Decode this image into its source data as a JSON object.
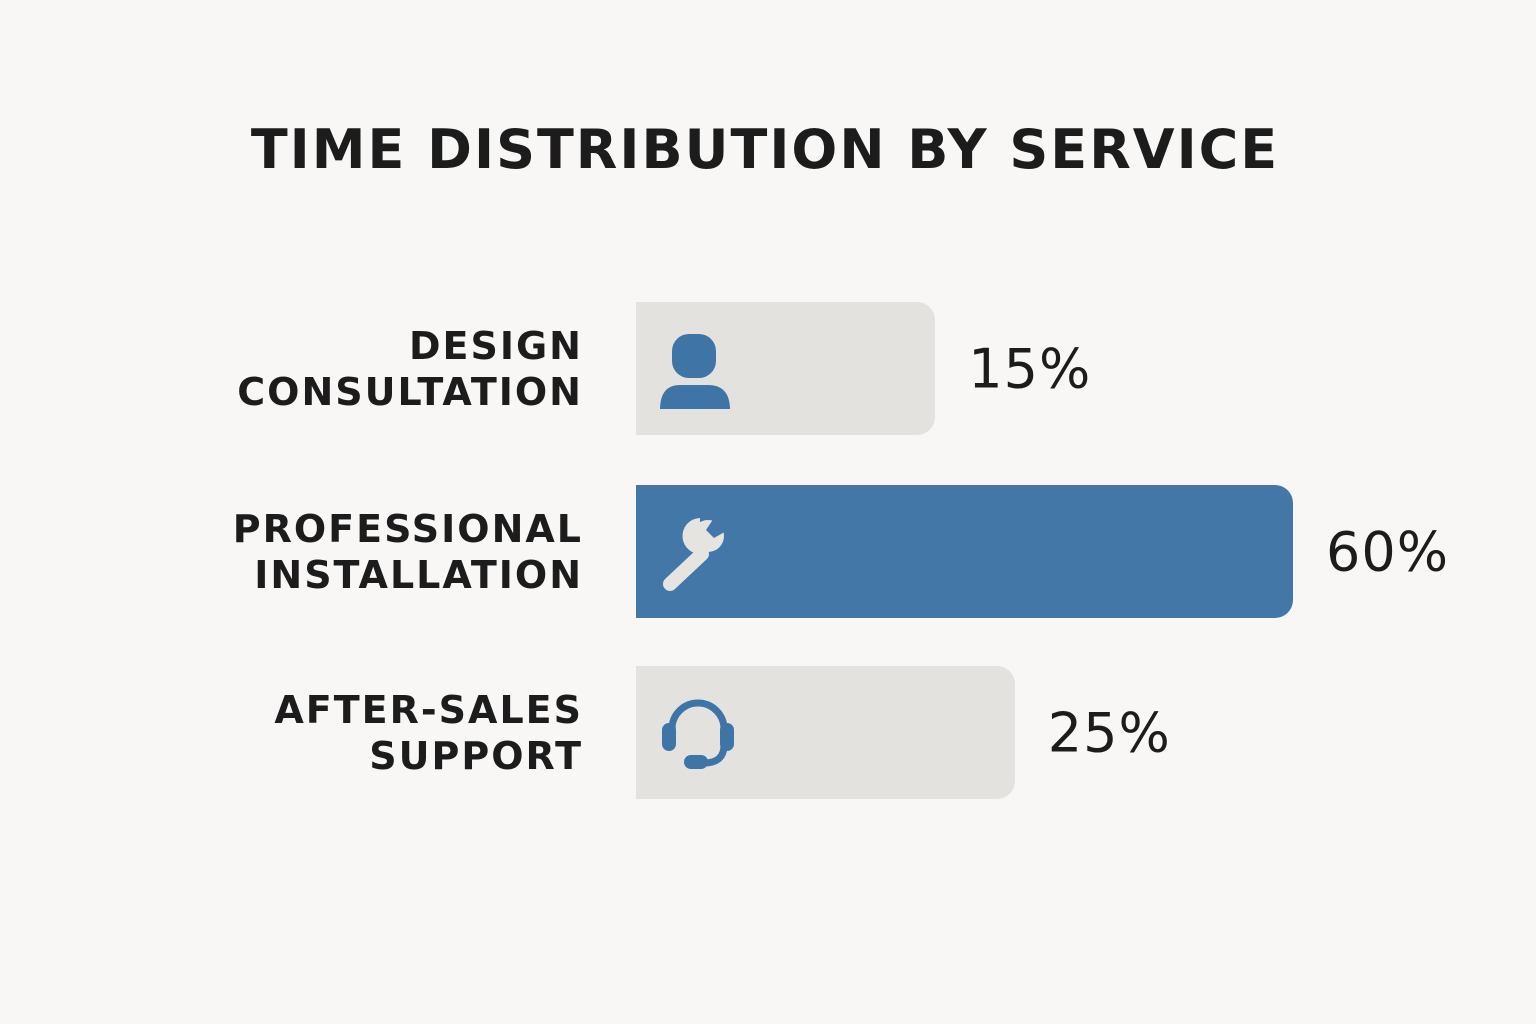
{
  "chart_data": {
    "type": "bar",
    "orientation": "horizontal",
    "title": "TIME DISTRIBUTION BY SERVICE",
    "categories": [
      {
        "line1": "DESIGN",
        "line2": "CONSULTATION"
      },
      {
        "line1": "PROFESSIONAL",
        "line2": "INSTALLATION"
      },
      {
        "line1": "AFTER-SALES",
        "line2": "SUPPORT"
      }
    ],
    "values": [
      15,
      60,
      25
    ],
    "value_labels": [
      "15%",
      "60%",
      "25%"
    ],
    "icons": [
      "person-icon",
      "wrench-icon",
      "headset-icon"
    ],
    "highlight_index": 1,
    "grid": false,
    "colors": {
      "highlight": "#4277a8",
      "default": "#e4e2de",
      "icon_on_default": "#3f74a7",
      "icon_on_highlight": "#e6e4e0",
      "background": "#f8f7f5"
    }
  }
}
